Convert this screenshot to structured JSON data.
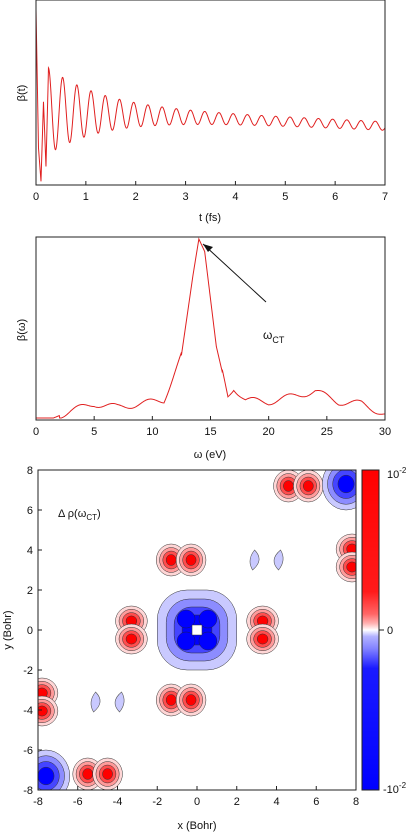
{
  "chart_data": [
    {
      "type": "line",
      "xlabel": "t (fs)",
      "ylabel": "β(t)",
      "xlim": [
        0,
        7
      ],
      "xticks": [
        "0",
        "1",
        "2",
        "3",
        "4",
        "5",
        "6",
        "7"
      ],
      "yticks_labeled": false,
      "grid": false,
      "color": "#e02020",
      "series": [
        {
          "x": [
            0.0,
            0.05,
            0.1,
            0.15,
            0.2,
            0.25,
            0.5,
            1.0,
            2.0,
            3.0,
            4.0,
            5.0,
            6.0,
            7.0
          ],
          "y": [
            0.95,
            0.2,
            0.02,
            0.45,
            0.1,
            0.62,
            0.4,
            0.4,
            0.39,
            0.38,
            0.37,
            0.36,
            0.34,
            0.34
          ],
          "oscillation_period_fs": 0.285
        }
      ]
    },
    {
      "type": "line",
      "xlabel": "ω (eV)",
      "ylabel": "β(ω)",
      "xlim": [
        0,
        30
      ],
      "xticks": [
        "0",
        "5",
        "10",
        "15",
        "20",
        "25",
        "30"
      ],
      "yticks_labeled": false,
      "grid": false,
      "color": "#e02020",
      "series": [
        {
          "x": [
            0,
            1.5,
            3,
            5,
            7,
            9,
            11,
            12.5,
            13.5,
            14,
            14.5,
            15.5,
            16.5,
            17,
            18,
            20,
            22,
            24,
            26,
            28,
            30
          ],
          "y": [
            0,
            0,
            0.04,
            0.08,
            0.06,
            0.08,
            0.1,
            0.35,
            0.8,
            1.0,
            0.93,
            0.4,
            0.12,
            0.17,
            0.1,
            0.09,
            0.12,
            0.15,
            0.09,
            0.08,
            0.02
          ]
        }
      ],
      "annotation": {
        "text_main": "ω",
        "text_sub": "CT",
        "points_to_x": 14
      }
    },
    {
      "type": "heatmap",
      "style": "filled contour",
      "title_main": "Δ ρ(ω",
      "title_sub": "CT",
      "xlabel": "x (Bohr)",
      "ylabel": "y (Bohr)",
      "xlim": [
        -8,
        8
      ],
      "ylim": [
        -8,
        8
      ],
      "xticks": [
        "-8",
        "-6",
        "-4",
        "-2",
        "0",
        "2",
        "4",
        "6",
        "8"
      ],
      "yticks": [
        "-8",
        "-6",
        "-4",
        "-2",
        "0",
        "2",
        "4",
        "6",
        "8"
      ],
      "colorbar": {
        "min_base": "-10",
        "min_exp": "-2",
        "mid": "0",
        "max_base": "10",
        "max_exp": "-2",
        "low_color": "#0000ff",
        "high_color": "#ff0000",
        "mid_color": "#ffffff"
      },
      "features": [
        {
          "x": 0,
          "y": 0,
          "sign": "negative",
          "level": 4,
          "shape": "quad-lobe",
          "label": "central depletion"
        },
        {
          "x": -3.3,
          "y": 0,
          "sign": "positive",
          "level": 3,
          "shape": "dimer-vertical"
        },
        {
          "x": 3.3,
          "y": 0,
          "sign": "positive",
          "level": 3,
          "shape": "dimer-vertical"
        },
        {
          "x": -0.8,
          "y": 3.5,
          "sign": "positive",
          "level": 3,
          "shape": "dimer-horizontal"
        },
        {
          "x": -0.8,
          "y": -3.5,
          "sign": "positive",
          "level": 3,
          "shape": "dimer-horizontal"
        },
        {
          "x": 3.5,
          "y": 3.5,
          "sign": "negative",
          "level": 1,
          "shape": "crescent"
        },
        {
          "x": -4.5,
          "y": -3.6,
          "sign": "negative",
          "level": 1,
          "shape": "crescent"
        },
        {
          "x": 5.1,
          "y": 7.2,
          "sign": "positive",
          "level": 3,
          "shape": "dimer-horizontal"
        },
        {
          "x": -5.0,
          "y": -7.2,
          "sign": "positive",
          "level": 3,
          "shape": "dimer-horizontal"
        },
        {
          "x": -7.8,
          "y": -3.6,
          "sign": "positive",
          "level": 3,
          "shape": "dimer-vertical"
        },
        {
          "x": 7.8,
          "y": 3.6,
          "sign": "positive",
          "level": 3,
          "shape": "dimer-vertical"
        },
        {
          "x": -7.6,
          "y": -7.3,
          "sign": "negative",
          "level": 3,
          "shape": "corner"
        },
        {
          "x": 7.5,
          "y": 7.3,
          "sign": "negative",
          "level": 3,
          "shape": "corner"
        }
      ]
    }
  ]
}
